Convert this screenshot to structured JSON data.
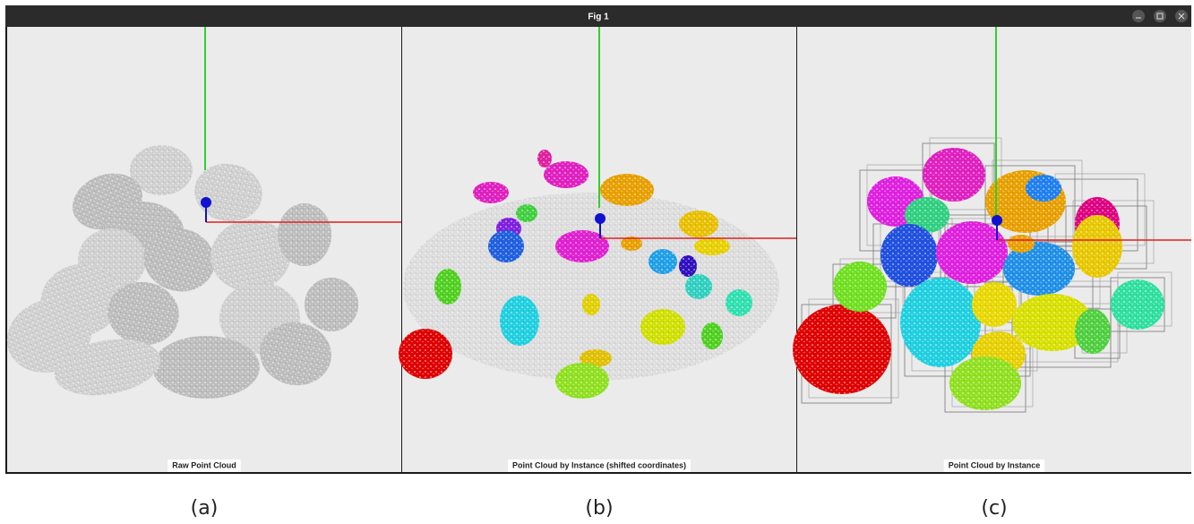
{
  "window": {
    "title": "Fig 1"
  },
  "panels": [
    {
      "label": "Raw Point Cloud",
      "caption": "(a)"
    },
    {
      "label": "Point Cloud by Instance (shifted coordinates)",
      "caption": "(b)"
    },
    {
      "label": "Point Cloud by Instance",
      "caption": "(c)"
    }
  ]
}
